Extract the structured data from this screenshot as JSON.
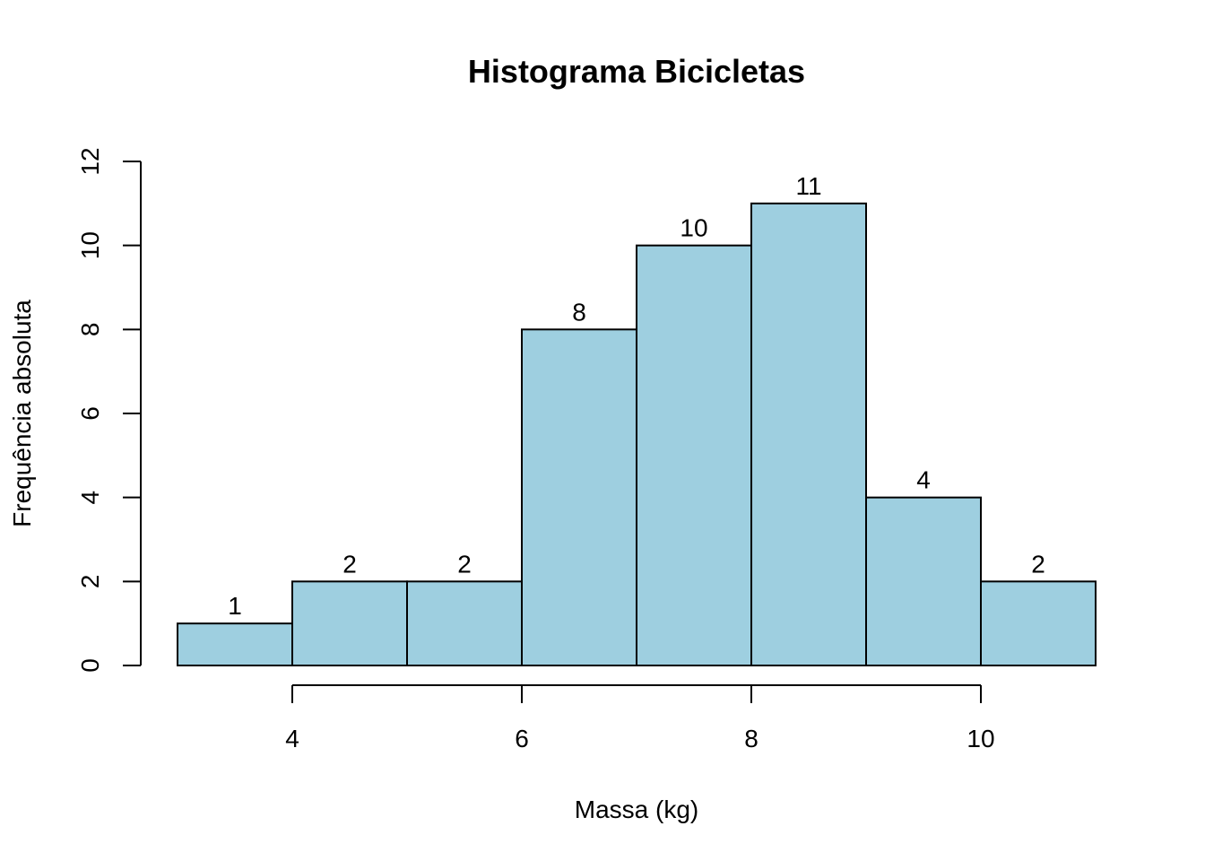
{
  "chart_data": {
    "type": "bar",
    "subtype": "histogram",
    "title": "Histograma Bicicletas",
    "xlabel": "Massa (kg)",
    "ylabel": "Frequência absoluta",
    "bins": [
      {
        "from": 3,
        "to": 4,
        "count": 1
      },
      {
        "from": 4,
        "to": 5,
        "count": 2
      },
      {
        "from": 5,
        "to": 6,
        "count": 2
      },
      {
        "from": 6,
        "to": 7,
        "count": 8
      },
      {
        "from": 7,
        "to": 8,
        "count": 10
      },
      {
        "from": 8,
        "to": 9,
        "count": 11
      },
      {
        "from": 9,
        "to": 10,
        "count": 4
      },
      {
        "from": 10,
        "to": 11,
        "count": 2
      }
    ],
    "x_ticks": [
      4,
      6,
      8,
      10
    ],
    "x_tick_labels": [
      "4",
      "6",
      "8",
      "10"
    ],
    "y_ticks": [
      0,
      2,
      4,
      6,
      8,
      10,
      12
    ],
    "y_tick_labels": [
      "0",
      "2",
      "4",
      "6",
      "8",
      "10",
      "12"
    ],
    "xlim": [
      3,
      11
    ],
    "ylim": [
      0,
      12
    ],
    "bar_color": "#9ecfe0",
    "edge_color": "#000000",
    "grid": false,
    "show_counts": true
  }
}
